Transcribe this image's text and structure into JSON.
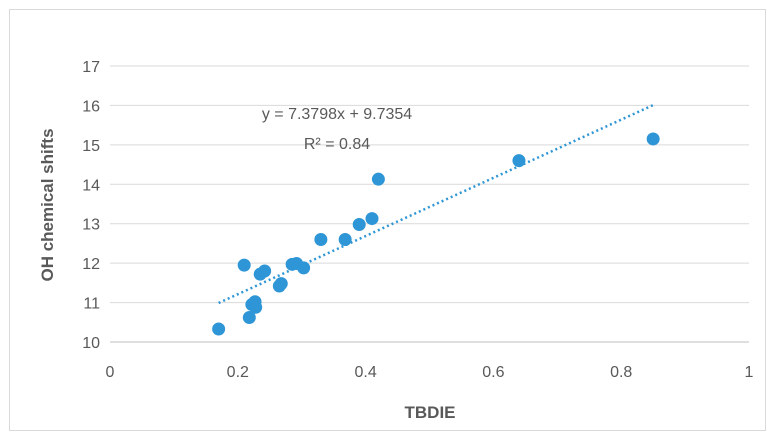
{
  "chart_data": {
    "type": "scatter",
    "title": "",
    "xlabel": "TBDIE",
    "ylabel": "OH chemical shifts",
    "xlim": [
      0,
      1
    ],
    "ylim": [
      10,
      17
    ],
    "x_ticks": [
      "0",
      "0.2",
      "0.4",
      "0.6",
      "0.8",
      "1"
    ],
    "y_ticks": [
      "10",
      "11",
      "12",
      "13",
      "14",
      "15",
      "16",
      "17"
    ],
    "grid": "horizontal",
    "legend": "none",
    "point_color": "#2e96d6",
    "trendline_color": "#2e96d6",
    "series": [
      {
        "points": [
          [
            0.17,
            10.33
          ],
          [
            0.21,
            11.95
          ],
          [
            0.218,
            10.62
          ],
          [
            0.222,
            10.95
          ],
          [
            0.227,
            11.02
          ],
          [
            0.228,
            10.88
          ],
          [
            0.235,
            11.72
          ],
          [
            0.242,
            11.8
          ],
          [
            0.265,
            11.42
          ],
          [
            0.268,
            11.48
          ],
          [
            0.285,
            11.97
          ],
          [
            0.292,
            11.99
          ],
          [
            0.303,
            11.88
          ],
          [
            0.33,
            12.6
          ],
          [
            0.368,
            12.6
          ],
          [
            0.39,
            12.98
          ],
          [
            0.41,
            13.13
          ],
          [
            0.42,
            14.13
          ],
          [
            0.64,
            14.6
          ],
          [
            0.85,
            15.15
          ]
        ]
      }
    ],
    "trendline": {
      "slope": 7.3798,
      "intercept": 9.7354,
      "x_range": [
        0.17,
        0.85
      ],
      "equation": "y = 7.3798x + 9.7354",
      "r2": "R² = 0.84"
    }
  }
}
